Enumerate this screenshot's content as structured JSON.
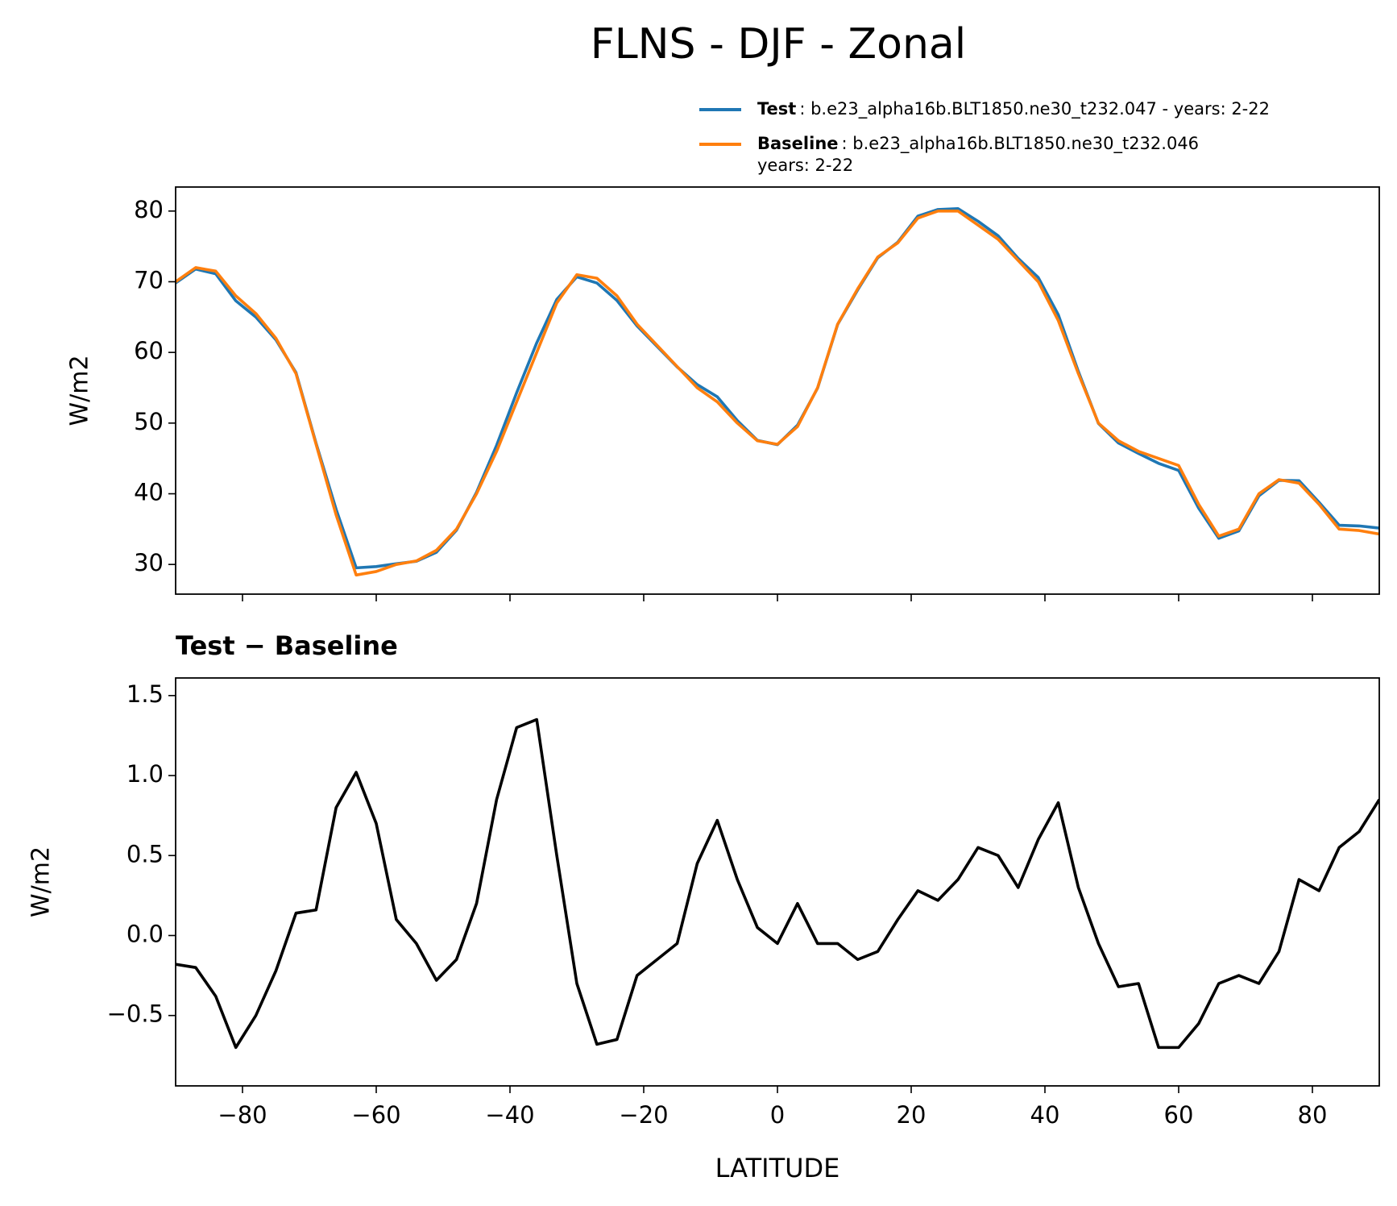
{
  "title": "FLNS - DJF - Zonal",
  "chart_data": [
    {
      "type": "line",
      "ylabel": "W/m2",
      "x": [
        -90,
        -87,
        -84,
        -81,
        -78,
        -75,
        -72,
        -69,
        -66,
        -63,
        -60,
        -57,
        -54,
        -51,
        -48,
        -45,
        -42,
        -39,
        -36,
        -33,
        -30,
        -27,
        -24,
        -21,
        -18,
        -15,
        -12,
        -9,
        -6,
        -3,
        0,
        3,
        6,
        9,
        12,
        15,
        18,
        21,
        24,
        27,
        30,
        33,
        36,
        39,
        42,
        45,
        48,
        51,
        54,
        57,
        60,
        63,
        66,
        69,
        72,
        75,
        78,
        81,
        84,
        87,
        90
      ],
      "series": [
        {
          "name": "Test",
          "description": [
            ": b.e23_alpha16b.BLT1850.ne30_t232.047 - years: 2-22"
          ],
          "color": "#1f77b4",
          "values": [
            69.82,
            71.8,
            71.12,
            67.3,
            65,
            61.78,
            57.14,
            47.16,
            37.8,
            29.52,
            29.7,
            30.1,
            30.45,
            31.72,
            34.85,
            40.2,
            46.85,
            54.3,
            61.35,
            67.5,
            70.7,
            69.82,
            67.35,
            63.75,
            60.85,
            57.95,
            55.45,
            53.72,
            50.35,
            47.55,
            46.95,
            49.7,
            54.95,
            63.95,
            68.85,
            73.4,
            75.6,
            79.28,
            80.22,
            80.35,
            78.55,
            76.5,
            73.3,
            70.6,
            65.33,
            57.3,
            49.95,
            47.18,
            45.7,
            44.3,
            43.3,
            37.95,
            33.7,
            34.75,
            39.7,
            41.9,
            41.85,
            38.78,
            35.55,
            35.45,
            35.15
          ]
        },
        {
          "name": "Baseline",
          "description": [
            ": b.e23_alpha16b.BLT1850.ne30_t232.046",
            "years: 2-22"
          ],
          "color": "#ff7f0e",
          "values": [
            70,
            72,
            71.5,
            68,
            65.5,
            62,
            57,
            47,
            37,
            28.5,
            29,
            30,
            30.5,
            32,
            35,
            40,
            46,
            53,
            60,
            67,
            71,
            70.5,
            68,
            64,
            61,
            58,
            55,
            53,
            50,
            47.5,
            47,
            49.5,
            55,
            64,
            69,
            73.5,
            75.5,
            79,
            80,
            80,
            78,
            76,
            73,
            70,
            64.5,
            57,
            50,
            47.5,
            46,
            45,
            44,
            38.5,
            34,
            35,
            40,
            42,
            41.5,
            38.5,
            35,
            34.8,
            34.3
          ]
        }
      ],
      "xlim": [
        -90,
        90
      ],
      "xticks": [
        -80,
        -60,
        -40,
        -20,
        0,
        20,
        40,
        60,
        80
      ],
      "ylim": [
        25.8,
        83.4
      ],
      "yticks": [
        30,
        40,
        50,
        60,
        70,
        80
      ]
    },
    {
      "type": "line",
      "title": "Test − Baseline",
      "xlabel": "LATITUDE",
      "ylabel": "W/m2",
      "x": [
        -90,
        -87,
        -84,
        -81,
        -78,
        -75,
        -72,
        -69,
        -66,
        -63,
        -60,
        -57,
        -54,
        -51,
        -48,
        -45,
        -42,
        -39,
        -36,
        -33,
        -30,
        -27,
        -24,
        -21,
        -18,
        -15,
        -12,
        -9,
        -6,
        -3,
        0,
        3,
        6,
        9,
        12,
        15,
        18,
        21,
        24,
        27,
        30,
        33,
        36,
        39,
        42,
        45,
        48,
        51,
        54,
        57,
        60,
        63,
        66,
        69,
        72,
        75,
        78,
        81,
        84,
        87,
        90
      ],
      "color": "#000000",
      "values": [
        -0.18,
        -0.2,
        -0.38,
        -0.7,
        -0.5,
        -0.22,
        0.14,
        0.16,
        0.8,
        1.02,
        0.7,
        0.1,
        -0.05,
        -0.28,
        -0.15,
        0.2,
        0.85,
        1.3,
        1.35,
        0.5,
        -0.3,
        -0.68,
        -0.65,
        -0.25,
        -0.15,
        -0.05,
        0.45,
        0.72,
        0.35,
        0.05,
        -0.05,
        0.2,
        -0.05,
        -0.05,
        -0.15,
        -0.1,
        0.1,
        0.28,
        0.22,
        0.35,
        0.55,
        0.5,
        0.3,
        0.6,
        0.83,
        0.3,
        -0.05,
        -0.32,
        -0.3,
        -0.7,
        -0.7,
        -0.55,
        -0.3,
        -0.25,
        -0.3,
        -0.1,
        0.35,
        0.28,
        0.55,
        0.65,
        0.85
      ],
      "xlim": [
        -90,
        90
      ],
      "xticks": [
        {
          "value": -80,
          "label": "−80"
        },
        {
          "value": -60,
          "label": "−60"
        },
        {
          "value": -40,
          "label": "−40"
        },
        {
          "value": -20,
          "label": "−20"
        },
        0,
        20,
        40,
        60,
        80
      ],
      "ylim": [
        -0.94,
        1.61
      ],
      "yticks": [
        {
          "value": -0.5,
          "label": "−0.5"
        },
        {
          "value": 0,
          "label": "0.0"
        },
        0.5,
        {
          "value": 1,
          "label": "1.0"
        },
        1.5
      ]
    }
  ]
}
